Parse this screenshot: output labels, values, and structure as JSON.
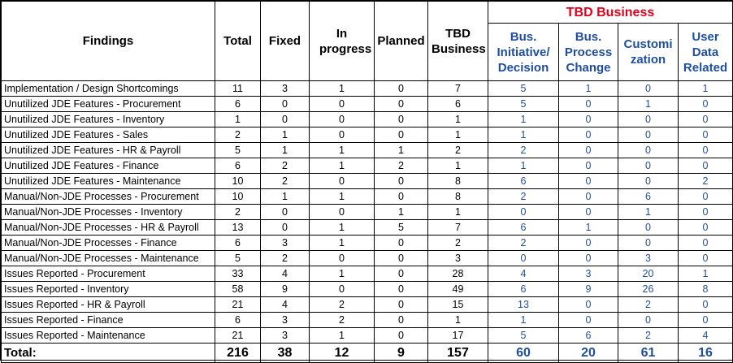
{
  "headers": {
    "findings": "Findings",
    "total": "Total",
    "fixed": "Fixed",
    "in_progress": "In progress",
    "planned": "Planned",
    "tbd_business": "TBD Business",
    "group_title": "TBD Business",
    "bus_initiative": "Bus. Initiative/ Decision",
    "bus_process": "Bus. Process Change",
    "customization": "Customi zation",
    "user_data": "User Data Related"
  },
  "colors": {
    "group_title": "#e3001b",
    "business": "#1f4e9e"
  },
  "rows": [
    {
      "finding": "Implementation / Design Shortcomings",
      "total": "11",
      "fixed": "3",
      "in_progress": "1",
      "planned": "0",
      "tbd": "7",
      "initiative": "5",
      "process": "1",
      "custom": "0",
      "user": "1"
    },
    {
      "finding": "Unutilized JDE Features - Procurement",
      "total": "6",
      "fixed": "0",
      "in_progress": "0",
      "planned": "0",
      "tbd": "6",
      "initiative": "5",
      "process": "0",
      "custom": "1",
      "user": "0"
    },
    {
      "finding": "Unutilized JDE Features - Inventory",
      "total": "1",
      "fixed": "0",
      "in_progress": "0",
      "planned": "0",
      "tbd": "1",
      "initiative": "1",
      "process": "0",
      "custom": "0",
      "user": "0"
    },
    {
      "finding": "Unutilized JDE Features - Sales",
      "total": "2",
      "fixed": "1",
      "in_progress": "0",
      "planned": "0",
      "tbd": "1",
      "initiative": "1",
      "process": "0",
      "custom": "0",
      "user": "0"
    },
    {
      "finding": "Unutilized JDE Features - HR & Payroll",
      "total": "5",
      "fixed": "1",
      "in_progress": "1",
      "planned": "1",
      "tbd": "2",
      "initiative": "2",
      "process": "0",
      "custom": "0",
      "user": "0"
    },
    {
      "finding": "Unutilized JDE Features - Finance",
      "total": "6",
      "fixed": "2",
      "in_progress": "1",
      "planned": "2",
      "tbd": "1",
      "initiative": "1",
      "process": "0",
      "custom": "0",
      "user": "0"
    },
    {
      "finding": "Unutilized JDE Features - Maintenance",
      "total": "10",
      "fixed": "2",
      "in_progress": "0",
      "planned": "0",
      "tbd": "8",
      "initiative": "6",
      "process": "0",
      "custom": "0",
      "user": "2"
    },
    {
      "finding": "Manual/Non-JDE Processes - Procurement",
      "total": "10",
      "fixed": "1",
      "in_progress": "1",
      "planned": "0",
      "tbd": "8",
      "initiative": "2",
      "process": "0",
      "custom": "6",
      "user": "0"
    },
    {
      "finding": "Manual/Non-JDE Processes - Inventory",
      "total": "2",
      "fixed": "0",
      "in_progress": "0",
      "planned": "1",
      "tbd": "1",
      "initiative": "0",
      "process": "0",
      "custom": "1",
      "user": "0"
    },
    {
      "finding": "Manual/Non-JDE Processes - HR & Payroll",
      "total": "13",
      "fixed": "0",
      "in_progress": "1",
      "planned": "5",
      "tbd": "7",
      "initiative": "6",
      "process": "1",
      "custom": "0",
      "user": "0"
    },
    {
      "finding": "Manual/Non-JDE Processes - Finance",
      "total": "6",
      "fixed": "3",
      "in_progress": "1",
      "planned": "0",
      "tbd": "2",
      "initiative": "2",
      "process": "0",
      "custom": "0",
      "user": "0"
    },
    {
      "finding": "Manual/Non-JDE Processes - Maintenance",
      "total": "5",
      "fixed": "2",
      "in_progress": "0",
      "planned": "0",
      "tbd": "3",
      "initiative": "0",
      "process": "0",
      "custom": "3",
      "user": "0"
    },
    {
      "finding": "Issues Reported - Procurement",
      "total": "33",
      "fixed": "4",
      "in_progress": "1",
      "planned": "0",
      "tbd": "28",
      "initiative": "4",
      "process": "3",
      "custom": "20",
      "user": "1"
    },
    {
      "finding": "Issues Reported - Inventory",
      "total": "58",
      "fixed": "9",
      "in_progress": "0",
      "planned": "0",
      "tbd": "49",
      "initiative": "6",
      "process": "9",
      "custom": "26",
      "user": "8"
    },
    {
      "finding": "Issues Reported - HR & Payroll",
      "total": "21",
      "fixed": "4",
      "in_progress": "2",
      "planned": "0",
      "tbd": "15",
      "initiative": "13",
      "process": "0",
      "custom": "2",
      "user": "0"
    },
    {
      "finding": "Issues Reported - Finance",
      "total": "6",
      "fixed": "3",
      "in_progress": "2",
      "planned": "0",
      "tbd": "1",
      "initiative": "1",
      "process": "0",
      "custom": "0",
      "user": "0"
    },
    {
      "finding": "Issues Reported - Maintenance",
      "total": "21",
      "fixed": "3",
      "in_progress": "1",
      "planned": "0",
      "tbd": "17",
      "initiative": "5",
      "process": "6",
      "custom": "2",
      "user": "4"
    }
  ],
  "totals": {
    "finding": "Total:",
    "total": "216",
    "fixed": "38",
    "in_progress": "12",
    "planned": "9",
    "tbd": "157",
    "initiative": "60",
    "process": "20",
    "custom": "61",
    "user": "16"
  }
}
